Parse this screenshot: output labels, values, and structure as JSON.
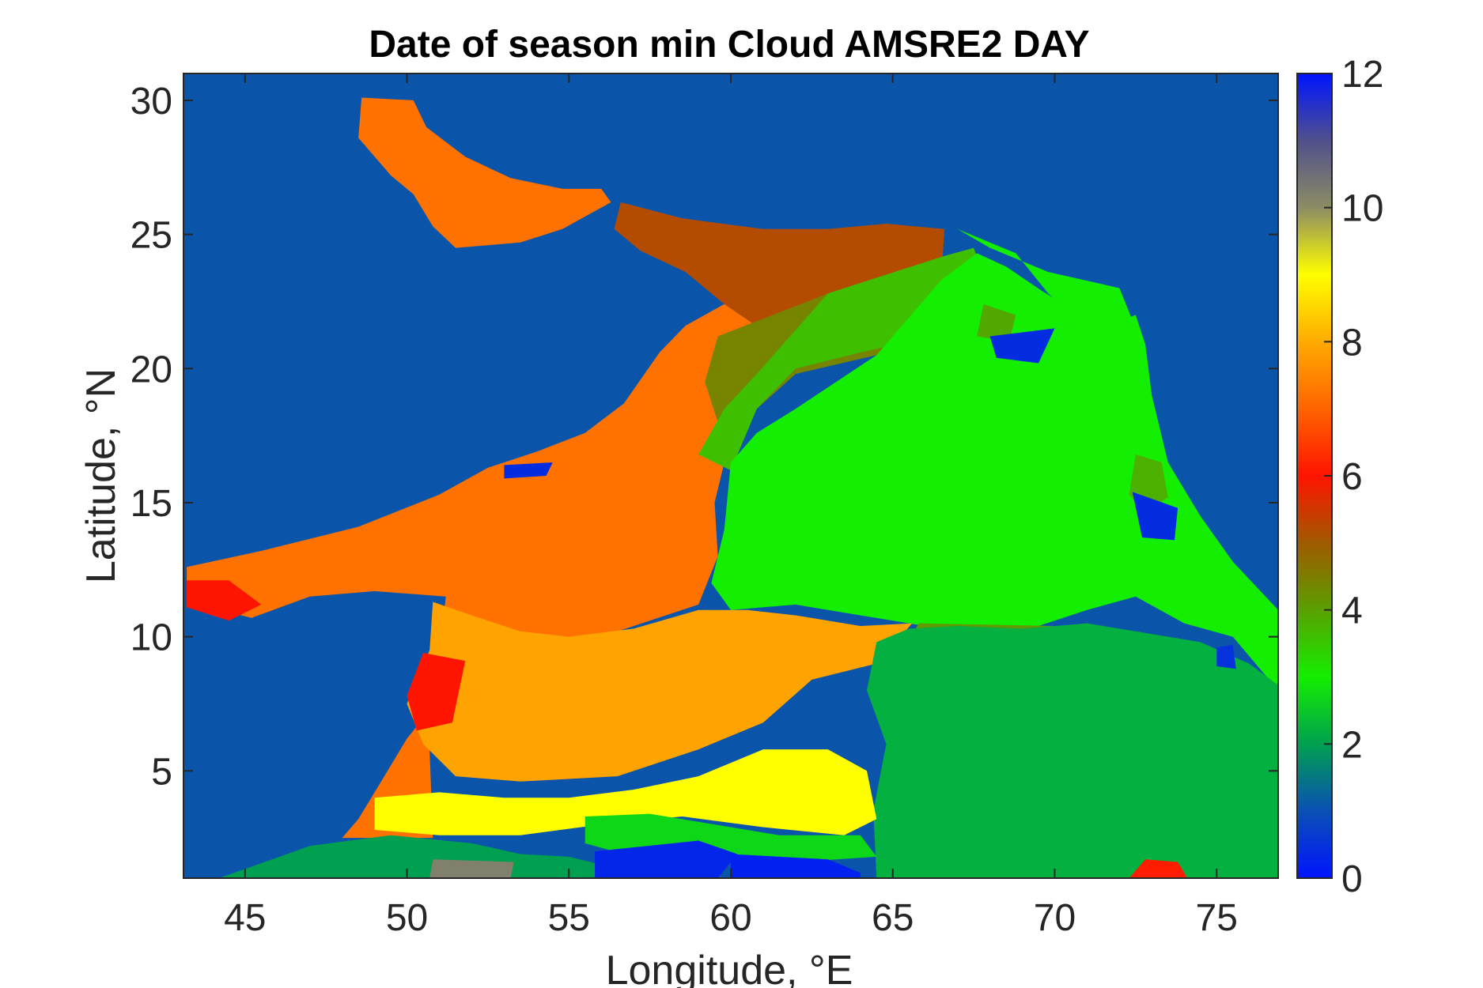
{
  "chart_data": {
    "type": "heatmap",
    "title": "Date of season min Cloud AMSRE2 DAY",
    "xlabel": "Longitude, °E",
    "ylabel": "Latitude, °N",
    "xlim": [
      43.1,
      76.9
    ],
    "ylim": [
      1.0,
      31.0
    ],
    "x_ticks": [
      45,
      50,
      55,
      60,
      65,
      70,
      75
    ],
    "y_ticks": [
      5,
      10,
      15,
      20,
      25,
      30
    ],
    "colorbar": {
      "range": [
        0,
        12
      ],
      "ticks": [
        0,
        2,
        4,
        6,
        8,
        10,
        12
      ],
      "stops": [
        {
          "value": 0,
          "color": "#0014ff"
        },
        {
          "value": 1,
          "color": "#0a50b4"
        },
        {
          "value": 2,
          "color": "#00a050"
        },
        {
          "value": 3,
          "color": "#14ee00"
        },
        {
          "value": 4,
          "color": "#5aa000"
        },
        {
          "value": 5,
          "color": "#a05a00"
        },
        {
          "value": 6,
          "color": "#ff1400"
        },
        {
          "value": 7,
          "color": "#ff6400"
        },
        {
          "value": 8,
          "color": "#ffaa00"
        },
        {
          "value": 9,
          "color": "#ffff00"
        },
        {
          "value": 10,
          "color": "#8c8c64"
        },
        {
          "value": 11,
          "color": "#50508c"
        },
        {
          "value": 12,
          "color": "#0014ff"
        }
      ]
    },
    "land_color": "#0a55aa",
    "regions": [
      {
        "name": "persian-gulf",
        "value": 7.2,
        "polygon": [
          [
            48.6,
            30.1
          ],
          [
            50.2,
            30.0
          ],
          [
            50.6,
            29.0
          ],
          [
            51.8,
            27.9
          ],
          [
            53.2,
            27.1
          ],
          [
            54.8,
            26.7
          ],
          [
            56.0,
            26.7
          ],
          [
            56.3,
            26.2
          ],
          [
            54.8,
            25.2
          ],
          [
            53.5,
            24.7
          ],
          [
            51.5,
            24.5
          ],
          [
            50.8,
            25.3
          ],
          [
            50.2,
            26.5
          ],
          [
            49.5,
            27.2
          ],
          [
            48.5,
            28.6
          ]
        ]
      },
      {
        "name": "gulf-of-oman",
        "value": 5.2,
        "polygon": [
          [
            56.6,
            26.2
          ],
          [
            58.5,
            25.6
          ],
          [
            61.0,
            25.2
          ],
          [
            63.0,
            25.2
          ],
          [
            64.8,
            25.4
          ],
          [
            66.6,
            25.2
          ],
          [
            66.5,
            23.5
          ],
          [
            63.8,
            22.0
          ],
          [
            61.5,
            21.0
          ],
          [
            59.8,
            22.4
          ],
          [
            58.6,
            23.6
          ],
          [
            57.2,
            24.4
          ],
          [
            56.4,
            25.2
          ]
        ]
      },
      {
        "name": "main-orange",
        "value": 7.2,
        "polygon": [
          [
            43.2,
            12.6
          ],
          [
            45.5,
            13.2
          ],
          [
            48.5,
            14.1
          ],
          [
            51.0,
            15.3
          ],
          [
            52.5,
            16.3
          ],
          [
            54.0,
            16.9
          ],
          [
            55.5,
            17.6
          ],
          [
            56.7,
            18.7
          ],
          [
            57.8,
            20.6
          ],
          [
            58.6,
            21.6
          ],
          [
            59.8,
            22.4
          ],
          [
            61.5,
            21.0
          ],
          [
            61.2,
            19.0
          ],
          [
            60.0,
            17.5
          ],
          [
            59.5,
            15.0
          ],
          [
            59.6,
            13.0
          ],
          [
            59.0,
            11.2
          ],
          [
            57.0,
            10.4
          ],
          [
            55.0,
            9.6
          ],
          [
            53.0,
            9.0
          ],
          [
            51.2,
            8.0
          ],
          [
            50.0,
            6.2
          ],
          [
            49.3,
            4.8
          ],
          [
            48.5,
            3.2
          ],
          [
            48.0,
            2.5
          ],
          [
            49.4,
            2.5
          ],
          [
            50.3,
            2.5
          ],
          [
            50.8,
            2.5
          ],
          [
            50.6,
            9.0
          ],
          [
            51.1,
            10.5
          ],
          [
            51.2,
            11.5
          ],
          [
            49.0,
            11.7
          ],
          [
            47.0,
            11.5
          ],
          [
            45.2,
            10.7
          ],
          [
            43.2,
            11.3
          ]
        ]
      },
      {
        "name": "brown-west-india",
        "value": 4.4,
        "polygon": [
          [
            59.6,
            21.2
          ],
          [
            63.0,
            22.8
          ],
          [
            66.6,
            23.5
          ],
          [
            66.6,
            21.5
          ],
          [
            64.5,
            20.5
          ],
          [
            62.0,
            19.8
          ],
          [
            60.8,
            18.5
          ],
          [
            59.6,
            18.0
          ],
          [
            59.2,
            19.5
          ]
        ]
      },
      {
        "name": "olive-west-india",
        "value": 3.6,
        "polygon": [
          [
            63.0,
            22.8
          ],
          [
            66.6,
            24.2
          ],
          [
            67.5,
            24.5
          ],
          [
            67.8,
            23.5
          ],
          [
            67.0,
            22.0
          ],
          [
            65.5,
            21.0
          ],
          [
            64.0,
            20.6
          ],
          [
            62.0,
            20.0
          ],
          [
            60.8,
            18.5
          ],
          [
            60.0,
            16.2
          ],
          [
            59.0,
            16.8
          ],
          [
            59.8,
            18.5
          ],
          [
            60.8,
            19.8
          ]
        ]
      },
      {
        "name": "arabian-sea-green",
        "value": 3.0,
        "polygon": [
          [
            60.0,
            16.5
          ],
          [
            59.8,
            14.0
          ],
          [
            59.4,
            12.0
          ],
          [
            60.0,
            11.0
          ],
          [
            62.0,
            11.2
          ],
          [
            64.0,
            10.8
          ],
          [
            66.0,
            10.4
          ],
          [
            67.5,
            10.2
          ],
          [
            69.5,
            10.4
          ],
          [
            71.0,
            11.0
          ],
          [
            72.5,
            11.5
          ],
          [
            74.0,
            10.5
          ],
          [
            75.5,
            10.0
          ],
          [
            76.9,
            8.0
          ],
          [
            76.9,
            11.0
          ],
          [
            75.5,
            12.8
          ],
          [
            74.5,
            14.5
          ],
          [
            73.5,
            16.5
          ],
          [
            73.0,
            19.0
          ],
          [
            72.8,
            20.9
          ],
          [
            72.5,
            22.0
          ],
          [
            71.5,
            21.5
          ],
          [
            69.6,
            22.9
          ],
          [
            68.5,
            23.8
          ],
          [
            67.6,
            24.3
          ],
          [
            66.5,
            23.3
          ],
          [
            64.5,
            20.5
          ],
          [
            62.0,
            18.5
          ],
          [
            60.8,
            17.6
          ]
        ]
      },
      {
        "name": "green-gujarat",
        "value": 3.0,
        "polygon": [
          [
            67.0,
            25.2
          ],
          [
            68.8,
            24.3
          ],
          [
            69.8,
            22.8
          ],
          [
            71.0,
            21.5
          ],
          [
            72.6,
            21.2
          ],
          [
            72.0,
            23.0
          ],
          [
            69.8,
            23.6
          ],
          [
            68.0,
            24.5
          ]
        ]
      },
      {
        "name": "olive-patch-center",
        "value": 4.1,
        "polygon": [
          [
            65.8,
            10.5
          ],
          [
            70.0,
            10.4
          ],
          [
            71.5,
            9.2
          ],
          [
            70.5,
            7.8
          ],
          [
            68.5,
            7.6
          ],
          [
            66.5,
            8.0
          ],
          [
            65.2,
            9.2
          ]
        ]
      },
      {
        "name": "olive-patch-east",
        "value": 3.8,
        "polygon": [
          [
            72.5,
            16.8
          ],
          [
            73.3,
            16.5
          ],
          [
            73.5,
            15.2
          ],
          [
            72.8,
            14.6
          ],
          [
            72.3,
            15.3
          ]
        ]
      },
      {
        "name": "olive-patch-north",
        "value": 3.9,
        "polygon": [
          [
            67.8,
            22.4
          ],
          [
            68.8,
            22.0
          ],
          [
            68.6,
            21.0
          ],
          [
            67.6,
            21.2
          ]
        ]
      },
      {
        "name": "yellow-orange-belt",
        "value": 7.9,
        "polygon": [
          [
            50.8,
            11.3
          ],
          [
            52.0,
            10.8
          ],
          [
            53.5,
            10.2
          ],
          [
            55.0,
            10.0
          ],
          [
            57.0,
            10.3
          ],
          [
            59.0,
            11.0
          ],
          [
            60.5,
            11.0
          ],
          [
            62.0,
            10.8
          ],
          [
            64.0,
            10.4
          ],
          [
            65.6,
            10.5
          ],
          [
            64.5,
            9.0
          ],
          [
            62.5,
            8.4
          ],
          [
            61.0,
            6.8
          ],
          [
            59.0,
            5.8
          ],
          [
            56.5,
            4.8
          ],
          [
            53.5,
            4.6
          ],
          [
            51.5,
            4.8
          ],
          [
            50.5,
            6.0
          ],
          [
            50.0,
            7.5
          ],
          [
            50.7,
            9.5
          ]
        ]
      },
      {
        "name": "green-teal-east",
        "value": 2.2,
        "polygon": [
          [
            64.5,
            9.8
          ],
          [
            65.5,
            10.3
          ],
          [
            67.0,
            10.4
          ],
          [
            69.0,
            10.3
          ],
          [
            71.0,
            10.5
          ],
          [
            72.5,
            10.2
          ],
          [
            74.5,
            9.8
          ],
          [
            76.0,
            9.0
          ],
          [
            76.9,
            8.2
          ],
          [
            76.9,
            1.0
          ],
          [
            64.5,
            1.0
          ],
          [
            64.4,
            3.5
          ],
          [
            64.8,
            6.0
          ],
          [
            64.2,
            8.0
          ]
        ]
      },
      {
        "name": "yellow-south",
        "value": 9.0,
        "polygon": [
          [
            49.0,
            4.0
          ],
          [
            51.0,
            4.2
          ],
          [
            53.0,
            4.0
          ],
          [
            55.0,
            4.0
          ],
          [
            57.0,
            4.3
          ],
          [
            59.0,
            4.8
          ],
          [
            61.0,
            5.8
          ],
          [
            63.0,
            5.8
          ],
          [
            64.2,
            5.0
          ],
          [
            64.5,
            3.2
          ],
          [
            63.5,
            2.6
          ],
          [
            61.0,
            2.9
          ],
          [
            58.5,
            3.3
          ],
          [
            56.0,
            3.0
          ],
          [
            53.5,
            2.6
          ],
          [
            51.0,
            2.6
          ],
          [
            49.0,
            2.8
          ]
        ]
      },
      {
        "name": "green-band-south",
        "value": 2.7,
        "polygon": [
          [
            55.5,
            3.3
          ],
          [
            57.5,
            3.4
          ],
          [
            59.5,
            3.0
          ],
          [
            61.5,
            2.6
          ],
          [
            64.0,
            2.6
          ],
          [
            64.5,
            1.8
          ],
          [
            62.0,
            1.6
          ],
          [
            59.5,
            1.6
          ],
          [
            57.0,
            1.8
          ],
          [
            55.5,
            2.3
          ]
        ]
      },
      {
        "name": "teal-southwest",
        "value": 2.0,
        "polygon": [
          [
            44.2,
            1.0
          ],
          [
            47.0,
            2.2
          ],
          [
            49.5,
            2.6
          ],
          [
            52.0,
            2.3
          ],
          [
            53.5,
            1.9
          ],
          [
            55.0,
            1.8
          ],
          [
            56.0,
            1.5
          ],
          [
            56.0,
            1.0
          ]
        ]
      },
      {
        "name": "blue-patch-south-1",
        "value": 0.3,
        "polygon": [
          [
            55.8,
            2.0
          ],
          [
            59.0,
            2.4
          ],
          [
            60.2,
            1.9
          ],
          [
            59.6,
            1.0
          ],
          [
            55.8,
            1.0
          ]
        ]
      },
      {
        "name": "blue-patch-south-2",
        "value": 0.2,
        "polygon": [
          [
            60.0,
            1.9
          ],
          [
            63.0,
            1.7
          ],
          [
            64.0,
            1.2
          ],
          [
            64.0,
            1.0
          ],
          [
            60.0,
            1.0
          ]
        ]
      },
      {
        "name": "gray-patch-south",
        "value": 10.2,
        "polygon": [
          [
            50.8,
            1.7
          ],
          [
            53.3,
            1.6
          ],
          [
            53.2,
            1.0
          ],
          [
            50.7,
            1.0
          ]
        ]
      },
      {
        "name": "red-patch-yemen",
        "value": 6.0,
        "polygon": [
          [
            43.2,
            12.1
          ],
          [
            44.5,
            12.1
          ],
          [
            45.5,
            11.2
          ],
          [
            44.5,
            10.6
          ],
          [
            43.2,
            11.1
          ]
        ]
      },
      {
        "name": "red-patch-somalia",
        "value": 6.0,
        "polygon": [
          [
            50.5,
            9.4
          ],
          [
            51.8,
            9.1
          ],
          [
            51.4,
            6.8
          ],
          [
            50.3,
            6.5
          ],
          [
            50.0,
            7.8
          ]
        ]
      },
      {
        "name": "red-patch-southeast",
        "value": 6.1,
        "polygon": [
          [
            72.3,
            1.0
          ],
          [
            74.1,
            1.0
          ],
          [
            73.8,
            1.6
          ],
          [
            72.8,
            1.7
          ]
        ]
      },
      {
        "name": "blue-patch-gujarat",
        "value": 0.4,
        "polygon": [
          [
            68.0,
            21.2
          ],
          [
            70.0,
            21.5
          ],
          [
            69.5,
            20.2
          ],
          [
            68.2,
            20.4
          ]
        ]
      },
      {
        "name": "blue-patch-india",
        "value": 0.4,
        "polygon": [
          [
            72.4,
            15.4
          ],
          [
            73.8,
            14.8
          ],
          [
            73.7,
            13.6
          ],
          [
            72.7,
            13.7
          ]
        ]
      },
      {
        "name": "blue-patch-southeast",
        "value": 0.5,
        "polygon": [
          [
            75.0,
            9.6
          ],
          [
            75.5,
            9.7
          ],
          [
            75.6,
            8.8
          ],
          [
            75.0,
            8.9
          ]
        ]
      },
      {
        "name": "blue-patch-oman",
        "value": 0.4,
        "polygon": [
          [
            53.0,
            16.4
          ],
          [
            54.5,
            16.5
          ],
          [
            54.3,
            16.0
          ],
          [
            53.0,
            15.9
          ]
        ]
      }
    ]
  }
}
